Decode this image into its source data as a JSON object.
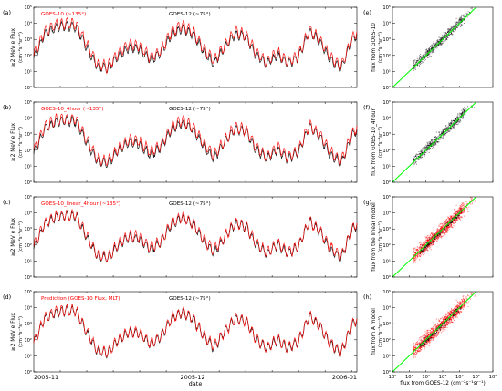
{
  "colors": {
    "goes10": "#ff0000",
    "goes12": "#000000",
    "diagonal": "#00ff00"
  },
  "chart_data": [
    {
      "panel": "a",
      "type": "line",
      "scale": "log",
      "ylabel": "≥2 MeV e Flux",
      "ylabel_units": "(cm⁻²s⁻¹sr⁻¹)",
      "ylim": [
        1,
        100000
      ],
      "ytick_labels": [
        "10⁰",
        "10¹",
        "10²",
        "10³",
        "10⁴",
        "10⁵"
      ],
      "legend": [
        "GOES-10 (~135°)",
        "GOES-12 (~75°)"
      ],
      "time_days": [
        0,
        2,
        4,
        6,
        8,
        10,
        12,
        14,
        16,
        18,
        20,
        22,
        24,
        26,
        28,
        30,
        32,
        34,
        36,
        38,
        40,
        42,
        44,
        46,
        48,
        50,
        52,
        54,
        56,
        58,
        60,
        61
      ],
      "series": [
        {
          "name": "GOES-10 (~135°)",
          "color": "red",
          "values": [
            100,
            3000,
            8000,
            10000,
            9000,
            500,
            30,
            20,
            150,
            500,
            400,
            80,
            200,
            3000,
            8000,
            3000,
            300,
            50,
            400,
            3000,
            2000,
            150,
            40,
            150,
            40,
            100,
            4000,
            1000,
            80,
            20,
            1000,
            3000
          ]
        },
        {
          "name": "GOES-12 (~75°)",
          "color": "black",
          "values": [
            60,
            2000,
            5000,
            7000,
            6000,
            300,
            20,
            15,
            100,
            300,
            250,
            50,
            150,
            2000,
            5000,
            2000,
            200,
            30,
            300,
            2000,
            1500,
            100,
            30,
            100,
            30,
            80,
            3000,
            700,
            50,
            15,
            700,
            2000
          ]
        }
      ]
    },
    {
      "panel": "b",
      "type": "line",
      "scale": "log",
      "ylabel": "≥2 MeV e Flux",
      "ylabel_units": "(cm⁻²s⁻¹sr⁻¹)",
      "ylim": [
        1,
        100000
      ],
      "ytick_labels": [
        "10⁰",
        "10¹",
        "10²",
        "10³",
        "10⁴",
        "10⁵"
      ],
      "legend": [
        "GOES-10_4hour (~135°)",
        "GOES-12 (~75°)"
      ],
      "time_days": [
        0,
        2,
        4,
        6,
        8,
        10,
        12,
        14,
        16,
        18,
        20,
        22,
        24,
        26,
        28,
        30,
        32,
        34,
        36,
        38,
        40,
        42,
        44,
        46,
        48,
        50,
        52,
        54,
        56,
        58,
        60,
        61
      ],
      "series": [
        {
          "name": "GOES-10_4hour (~135°)",
          "color": "red",
          "values": [
            100,
            2800,
            7500,
            9000,
            8500,
            450,
            30,
            20,
            140,
            450,
            380,
            80,
            200,
            2800,
            7500,
            2800,
            300,
            50,
            380,
            2800,
            1900,
            150,
            40,
            150,
            40,
            100,
            3800,
            950,
            80,
            20,
            950,
            2800
          ]
        },
        {
          "name": "GOES-12 (~75°)",
          "color": "black",
          "values": [
            60,
            2000,
            5000,
            7000,
            6000,
            300,
            20,
            15,
            100,
            300,
            250,
            50,
            150,
            2000,
            5000,
            2000,
            200,
            30,
            300,
            2000,
            1500,
            100,
            30,
            100,
            30,
            80,
            3000,
            700,
            50,
            15,
            700,
            2000
          ]
        }
      ]
    },
    {
      "panel": "c",
      "type": "line",
      "scale": "log",
      "ylabel": "≥2 MeV e Flux",
      "ylabel_units": "(cm⁻²s⁻¹sr⁻¹)",
      "ylim": [
        1,
        100000
      ],
      "ytick_labels": [
        "10⁰",
        "10¹",
        "10²",
        "10³",
        "10⁴",
        "10⁵"
      ],
      "legend": [
        "GOES-10_linear_4hour (~135°)",
        "GOES-12 (~75°)"
      ],
      "time_days": [
        0,
        2,
        4,
        6,
        8,
        10,
        12,
        14,
        16,
        18,
        20,
        22,
        24,
        26,
        28,
        30,
        32,
        34,
        36,
        38,
        40,
        42,
        44,
        46,
        48,
        50,
        52,
        54,
        56,
        58,
        60,
        61
      ],
      "series": [
        {
          "name": "GOES-10_linear_4hour (~135°)",
          "color": "red",
          "values": [
            80,
            2200,
            6000,
            7500,
            7000,
            400,
            25,
            18,
            120,
            400,
            320,
            70,
            180,
            2400,
            6000,
            2400,
            250,
            45,
            320,
            2400,
            1600,
            130,
            35,
            130,
            35,
            90,
            3200,
            800,
            70,
            18,
            800,
            2400
          ]
        },
        {
          "name": "GOES-12 (~75°)",
          "color": "black",
          "values": [
            60,
            2000,
            5000,
            7000,
            6000,
            300,
            20,
            15,
            100,
            300,
            250,
            50,
            150,
            2000,
            5000,
            2000,
            200,
            30,
            300,
            2000,
            1500,
            100,
            30,
            100,
            30,
            80,
            3000,
            700,
            50,
            15,
            700,
            2000
          ]
        }
      ]
    },
    {
      "panel": "d",
      "type": "line",
      "scale": "log",
      "ylabel": "≥2 MeV e Flux",
      "ylabel_units": "(cm⁻²s⁻¹sr⁻¹)",
      "ylim": [
        1,
        100000
      ],
      "ytick_labels": [
        "10⁰",
        "10¹",
        "10²",
        "10³",
        "10⁴",
        "10⁵"
      ],
      "legend": [
        "Prediction (GOES-10 Flux, MLT)",
        "GOES-12 (~75°)"
      ],
      "time_days": [
        0,
        2,
        4,
        6,
        8,
        10,
        12,
        14,
        16,
        18,
        20,
        22,
        24,
        26,
        28,
        30,
        32,
        34,
        36,
        38,
        40,
        42,
        44,
        46,
        48,
        50,
        52,
        54,
        56,
        58,
        60,
        61
      ],
      "series": [
        {
          "name": "Prediction (GOES-10 Flux, MLT)",
          "color": "red",
          "values": [
            70,
            2100,
            5500,
            7200,
            6500,
            350,
            22,
            16,
            110,
            350,
            280,
            60,
            160,
            2200,
            5500,
            2200,
            220,
            40,
            300,
            2200,
            1600,
            110,
            32,
            110,
            32,
            85,
            3100,
            750,
            60,
            16,
            750,
            2200
          ]
        },
        {
          "name": "GOES-12 (~75°)",
          "color": "black",
          "values": [
            60,
            2000,
            5000,
            7000,
            6000,
            300,
            20,
            15,
            100,
            300,
            250,
            50,
            150,
            2000,
            5000,
            2000,
            200,
            30,
            300,
            2000,
            1500,
            100,
            30,
            100,
            30,
            80,
            3000,
            700,
            50,
            15,
            700,
            2000
          ]
        }
      ],
      "xtick_labels": [
        "2005-11",
        "2005-12",
        "2006-01"
      ],
      "xlabel": "date"
    },
    {
      "panel": "e",
      "type": "scatter",
      "scale": "log-log",
      "xlim": [
        1,
        1000000
      ],
      "ylim": [
        1,
        100000
      ],
      "ylabel": "flux from GOES-10",
      "ylabel_units": "(cm⁻²s⁻¹sr⁻¹)",
      "ytick_labels": [
        "10⁰",
        "10¹",
        "10²",
        "10³",
        "10⁴",
        "10⁵"
      ],
      "point_color": "black",
      "diagonal": "y = x"
    },
    {
      "panel": "f",
      "type": "scatter",
      "scale": "log-log",
      "xlim": [
        1,
        1000000
      ],
      "ylim": [
        1,
        100000
      ],
      "ylabel": "flux from GOES-10_4hour",
      "ylabel_units": "(cm⁻²s⁻¹sr⁻¹)",
      "ytick_labels": [
        "10⁰",
        "10¹",
        "10²",
        "10³",
        "10⁴",
        "10⁵"
      ],
      "point_color": "black",
      "diagonal": "y = x"
    },
    {
      "panel": "g",
      "type": "scatter",
      "scale": "log-log",
      "xlim": [
        1,
        1000000
      ],
      "ylim": [
        1,
        100000
      ],
      "ylabel": "flux from the linear model",
      "ylabel_units": "(cm⁻²s⁻¹sr⁻¹)",
      "ytick_labels": [
        "10⁰",
        "10¹",
        "10²",
        "10³",
        "10⁴",
        "10⁵"
      ],
      "point_color": "red",
      "diagonal": "y = x"
    },
    {
      "panel": "h",
      "type": "scatter",
      "scale": "log-log",
      "xlim": [
        1,
        1000000
      ],
      "ylim": [
        1,
        100000
      ],
      "ylabel": "flux from A model",
      "ylabel_units": "(cm⁻²s⁻¹sr⁻¹)",
      "ytick_labels": [
        "10⁰",
        "10¹",
        "10²",
        "10³",
        "10⁴",
        "10⁵"
      ],
      "xtick_labels": [
        "10⁰",
        "10¹",
        "10²",
        "10³",
        "10⁴",
        "10⁵",
        "10⁶"
      ],
      "xlabel": "flux from GOES-12 (cm⁻²s⁻¹sr⁻¹)",
      "point_color": "red",
      "diagonal": "y = x"
    }
  ]
}
